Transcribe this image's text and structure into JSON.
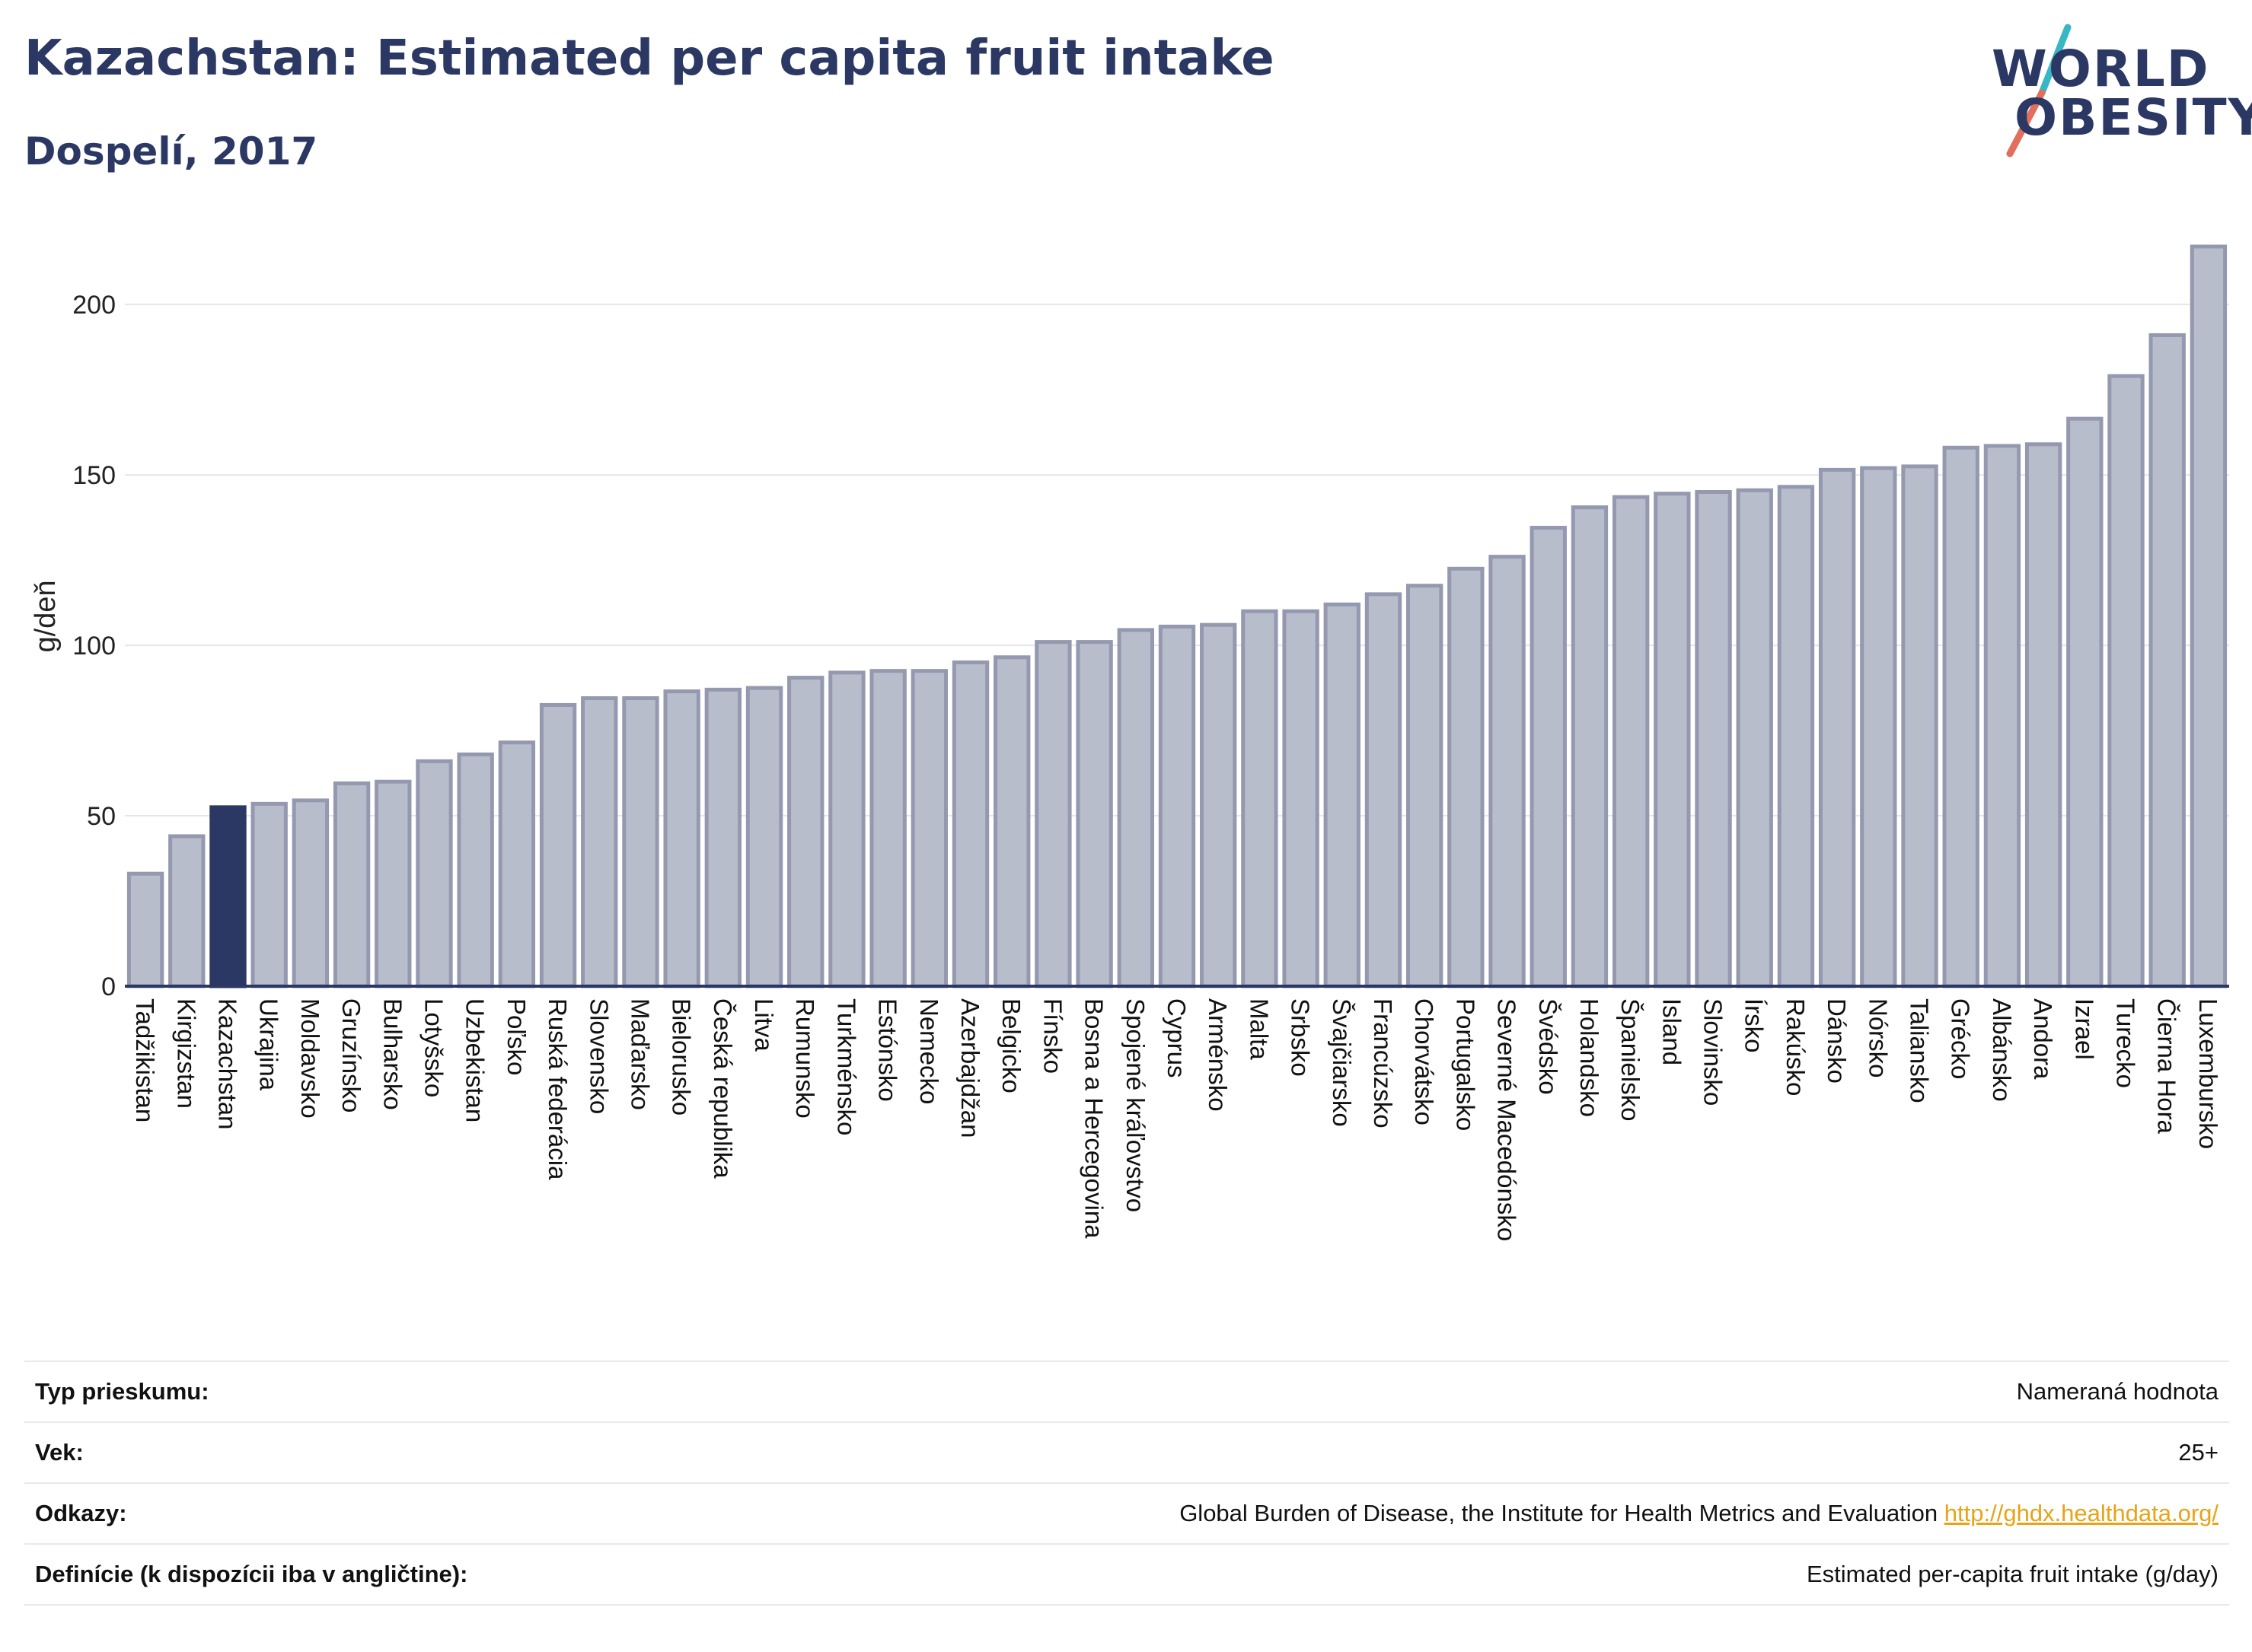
{
  "header": {
    "title": "Kazachstan: Estimated per capita fruit intake",
    "subtitle": "Dospelí, 2017"
  },
  "logo": {
    "line1": "WORLD",
    "line2": "OBESITY"
  },
  "colors": {
    "highlight": "#2c3864",
    "bar_fill": "#b8bdcc",
    "bar_stroke": "#9499b0",
    "accent_teal": "#37b6c4",
    "accent_coral": "#e26e5c",
    "link": "#e8a317"
  },
  "chart_data": {
    "type": "bar",
    "ylabel": "g/deň",
    "xlabel": "",
    "ylim": [
      0,
      217
    ],
    "yticks": [
      0,
      50,
      100,
      150,
      200
    ],
    "grid": true,
    "highlight": "Kazachstan",
    "categories": [
      "Tadžikistan",
      "Kirgizstan",
      "Kazachstan",
      "Ukrajina",
      "Moldavsko",
      "Gruzínsko",
      "Bulharsko",
      "Lotyšsko",
      "Uzbekistan",
      "Poľsko",
      "Ruská federácia",
      "Slovensko",
      "Maďarsko",
      "Bielorusko",
      "Česká republika",
      "Litva",
      "Rumunsko",
      "Turkménsko",
      "Estónsko",
      "Nemecko",
      "Azerbajdžan",
      "Belgicko",
      "Fínsko",
      "Bosna a Hercegovina",
      "Spojené kráľovstvo",
      "Cyprus",
      "Arménsko",
      "Malta",
      "Srbsko",
      "Švajčiarsko",
      "Francúzsko",
      "Chorvátsko",
      "Portugalsko",
      "Severné Macedónsko",
      "Švédsko",
      "Holandsko",
      "Španielsko",
      "Island",
      "Slovinsko",
      "Írsko",
      "Rakúsko",
      "Dánsko",
      "Nórsko",
      "Taliansko",
      "Grécko",
      "Albánsko",
      "Andora",
      "Izrael",
      "Turecko",
      "Čierna Hora",
      "Luxembursko"
    ],
    "values": [
      33,
      44,
      52.5,
      53.5,
      54.5,
      59.5,
      60,
      66,
      68,
      71.5,
      82.5,
      84.5,
      84.5,
      86.5,
      87,
      87.5,
      90.5,
      92,
      92.5,
      92.5,
      95,
      96.5,
      101,
      101,
      104.5,
      105.5,
      106,
      110,
      110,
      112,
      115,
      117.5,
      122.5,
      126,
      134.5,
      140.5,
      143.5,
      144.5,
      145,
      145.5,
      146.5,
      151.5,
      152,
      152.5,
      158,
      158.5,
      159,
      166.5,
      179,
      191,
      217
    ]
  },
  "meta": {
    "rows": [
      {
        "key": "Typ prieskumu:",
        "value": "Nameraná hodnota"
      },
      {
        "key": "Vek:",
        "value": "25+"
      },
      {
        "key": "Odkazy:",
        "value": "Global Burden of Disease, the Institute for Health Metrics and Evaluation ",
        "link": "http://ghdx.healthdata.org/"
      },
      {
        "key": "Definície (k dispozícii iba v angličtine):",
        "value": "Estimated per-capita fruit intake (g/day)"
      }
    ]
  }
}
